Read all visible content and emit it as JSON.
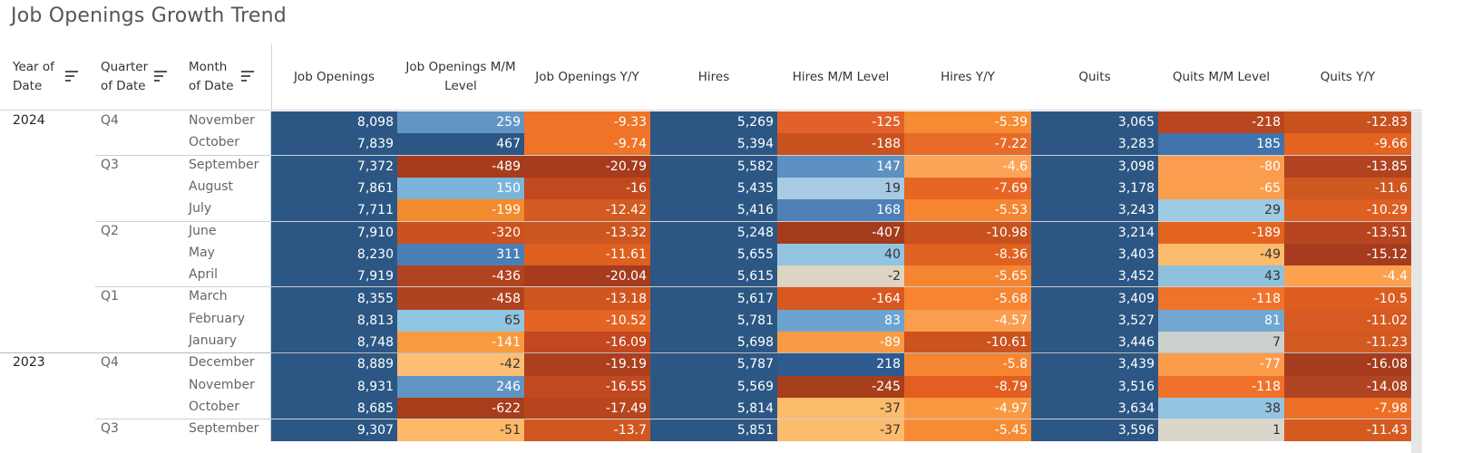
{
  "title": "Job Openings Growth Trend",
  "headers": {
    "year": "Year of Date",
    "quarter": "Quarter of Date",
    "month": "Month of Date",
    "measures": [
      "Job Openings",
      "Job Openings M/M Level",
      "Job Openings Y/Y",
      "Hires",
      "Hires M/M Level",
      "Hires Y/Y",
      "Quits",
      "Quits M/M Level",
      "Quits Y/Y"
    ]
  },
  "colors": {
    "dark_blue": "#2c5784",
    "text_light": "#ffffff",
    "text_dark": "#333333"
  },
  "rows": [
    {
      "year": "2024",
      "quarter": "Q4",
      "month": "November",
      "values": [
        "8,098",
        "259",
        "-9.33",
        "5,269",
        "-125",
        "-5.39",
        "3,065",
        "-218",
        "-12.83"
      ],
      "colors": [
        "#2c5784",
        "#6295c3",
        "#ef7428",
        "#2c5784",
        "#e2612a",
        "#f78b33",
        "#2c5784",
        "#b9461f",
        "#c8511e"
      ]
    },
    {
      "year": "",
      "quarter": "",
      "month": "October",
      "values": [
        "7,839",
        "467",
        "-9.74",
        "5,394",
        "-188",
        "-7.22",
        "3,283",
        "185",
        "-9.66"
      ],
      "colors": [
        "#2c5784",
        "#2c5784",
        "#ef7428",
        "#2c5784",
        "#c9521e",
        "#e86b27",
        "#2c5784",
        "#4073ac",
        "#e3631f"
      ]
    },
    {
      "year": "",
      "quarter": "Q3",
      "month": "September",
      "values": [
        "7,372",
        "-489",
        "-20.79",
        "5,582",
        "147",
        "-4.6",
        "3,098",
        "-80",
        "-13.85"
      ],
      "colors": [
        "#2c5784",
        "#a63c1d",
        "#a63c1d",
        "#2c5784",
        "#5c91c1",
        "#fca457",
        "#2c5784",
        "#fb9d4f",
        "#b24320"
      ]
    },
    {
      "year": "",
      "quarter": "",
      "month": "August",
      "values": [
        "7,861",
        "150",
        "-16",
        "5,435",
        "19",
        "-7.69",
        "3,178",
        "-65",
        "-11.6"
      ],
      "colors": [
        "#2c5784",
        "#7cb3da",
        "#c2491e",
        "#2c5784",
        "#a6cbe3",
        "#e86624",
        "#2c5784",
        "#fa9e4d",
        "#cf5720"
      ]
    },
    {
      "year": "",
      "quarter": "",
      "month": "July",
      "values": [
        "7,711",
        "-199",
        "-12.42",
        "5,416",
        "168",
        "-5.53",
        "3,243",
        "29",
        "-10.29"
      ],
      "colors": [
        "#2c5784",
        "#f38a2e",
        "#d25b21",
        "#2c5784",
        "#4e80b6",
        "#f58530",
        "#2c5784",
        "#9ecae4",
        "#dd5f22"
      ]
    },
    {
      "year": "",
      "quarter": "Q2",
      "month": "June",
      "values": [
        "7,910",
        "-320",
        "-13.32",
        "5,248",
        "-407",
        "-10.98",
        "3,214",
        "-189",
        "-13.51"
      ],
      "colors": [
        "#2c5784",
        "#cb521e",
        "#cc5620",
        "#2c5784",
        "#a33b1c",
        "#c8511e",
        "#2c5784",
        "#e2641f",
        "#b74620"
      ]
    },
    {
      "year": "",
      "quarter": "",
      "month": "May",
      "values": [
        "8,230",
        "311",
        "-11.61",
        "5,655",
        "40",
        "-8.36",
        "3,403",
        "-49",
        "-15.12"
      ],
      "colors": [
        "#2c5784",
        "#4a7fb6",
        "#dd601f",
        "#2c5784",
        "#93c4e1",
        "#e06221",
        "#2c5784",
        "#fdbb6c",
        "#a63c1d"
      ]
    },
    {
      "year": "",
      "quarter": "",
      "month": "April",
      "values": [
        "7,919",
        "-436",
        "-20.04",
        "5,615",
        "-2",
        "-5.65",
        "3,452",
        "43",
        "-4.4"
      ],
      "colors": [
        "#2c5784",
        "#b24321",
        "#a63c1d",
        "#2c5784",
        "#ddd5c2",
        "#f58530",
        "#2c5784",
        "#8fc1df",
        "#fca04e"
      ]
    },
    {
      "year": "",
      "quarter": "Q1",
      "month": "March",
      "values": [
        "8,355",
        "-458",
        "-13.18",
        "5,617",
        "-164",
        "-5.68",
        "3,409",
        "-118",
        "-10.5"
      ],
      "colors": [
        "#2c5784",
        "#b0431f",
        "#d0561f",
        "#2c5784",
        "#d8581f",
        "#f68430",
        "#2c5784",
        "#f0732a",
        "#dd5d21"
      ]
    },
    {
      "year": "",
      "quarter": "",
      "month": "February",
      "values": [
        "8,813",
        "65",
        "-10.52",
        "5,781",
        "83",
        "-4.57",
        "3,527",
        "81",
        "-11.02"
      ],
      "colors": [
        "#2c5784",
        "#91c6e3",
        "#e36424",
        "#2c5784",
        "#6ca4cf",
        "#fb9d4f",
        "#2c5784",
        "#72a7d2",
        "#d65a22"
      ]
    },
    {
      "year": "",
      "quarter": "",
      "month": "January",
      "values": [
        "8,748",
        "-141",
        "-16.09",
        "5,698",
        "-89",
        "-10.61",
        "3,446",
        "7",
        "-11.23"
      ],
      "colors": [
        "#2c5784",
        "#f89a40",
        "#c3481f",
        "#2c5784",
        "#f99a45",
        "#cb531e",
        "#2c5784",
        "#cdd1cd",
        "#d25a21"
      ]
    },
    {
      "year": "2023",
      "quarter": "Q4",
      "month": "December",
      "values": [
        "8,889",
        "-42",
        "-19.19",
        "5,787",
        "218",
        "-5.8",
        "3,439",
        "-77",
        "-16.08"
      ],
      "colors": [
        "#2c5784",
        "#fdbd75",
        "#ab3f1e",
        "#2c5784",
        "#2e5a8f",
        "#f58530",
        "#2c5784",
        "#fb9c4c",
        "#a63c1d"
      ]
    },
    {
      "year": "",
      "quarter": "",
      "month": "November",
      "values": [
        "8,931",
        "246",
        "-16.55",
        "5,569",
        "-245",
        "-8.79",
        "3,516",
        "-118",
        "-14.08"
      ],
      "colors": [
        "#2c5784",
        "#5f94c5",
        "#c1491f",
        "#2c5784",
        "#a73e1c",
        "#e35f21",
        "#2c5784",
        "#f0722a",
        "#b04322"
      ]
    },
    {
      "year": "",
      "quarter": "",
      "month": "October",
      "values": [
        "8,685",
        "-622",
        "-17.49",
        "5,814",
        "-37",
        "-4.97",
        "3,634",
        "38",
        "-7.98"
      ],
      "colors": [
        "#2c5784",
        "#a83d1c",
        "#b7461f",
        "#2c5784",
        "#fdbb6c",
        "#fa9741",
        "#2c5784",
        "#94c4e0",
        "#ec6f25"
      ]
    },
    {
      "year": "",
      "quarter": "Q3",
      "month": "September",
      "values": [
        "9,307",
        "-51",
        "-13.7",
        "5,851",
        "-37",
        "-5.45",
        "3,596",
        "1",
        "-11.43"
      ],
      "colors": [
        "#2c5784",
        "#fdb868",
        "#d0571f",
        "#2c5784",
        "#fdbb6c",
        "#f78b33",
        "#2c5784",
        "#d9d6cb",
        "#d45a20"
      ]
    }
  ]
}
